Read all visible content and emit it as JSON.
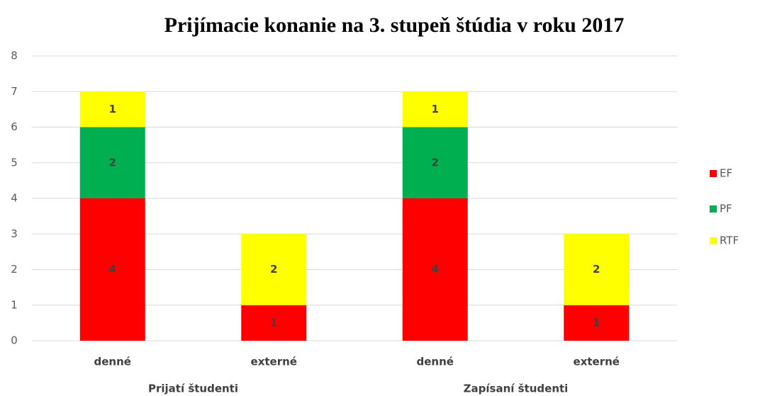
{
  "chart_data": {
    "type": "stacked_bar",
    "title": "Prijímacie konanie na 3. stupeň  štúdia v roku 2017",
    "categories": [
      "denné",
      "externé",
      "denné",
      "externé"
    ],
    "groups": [
      "Prijatí študenti",
      "Zapísaní študenti"
    ],
    "series": [
      {
        "name": "EF",
        "color": "#ff0000",
        "values": [
          4,
          1,
          4,
          1
        ]
      },
      {
        "name": "PF",
        "color": "#00b050",
        "values": [
          2,
          null,
          2,
          null
        ]
      },
      {
        "name": "RTF",
        "color": "#ffff00",
        "values": [
          1,
          2,
          1,
          2
        ]
      }
    ],
    "ylim": [
      0,
      8
    ],
    "yticks": [
      0,
      1,
      2,
      3,
      4,
      5,
      6,
      7,
      8
    ],
    "grid": true,
    "legend": "right"
  }
}
